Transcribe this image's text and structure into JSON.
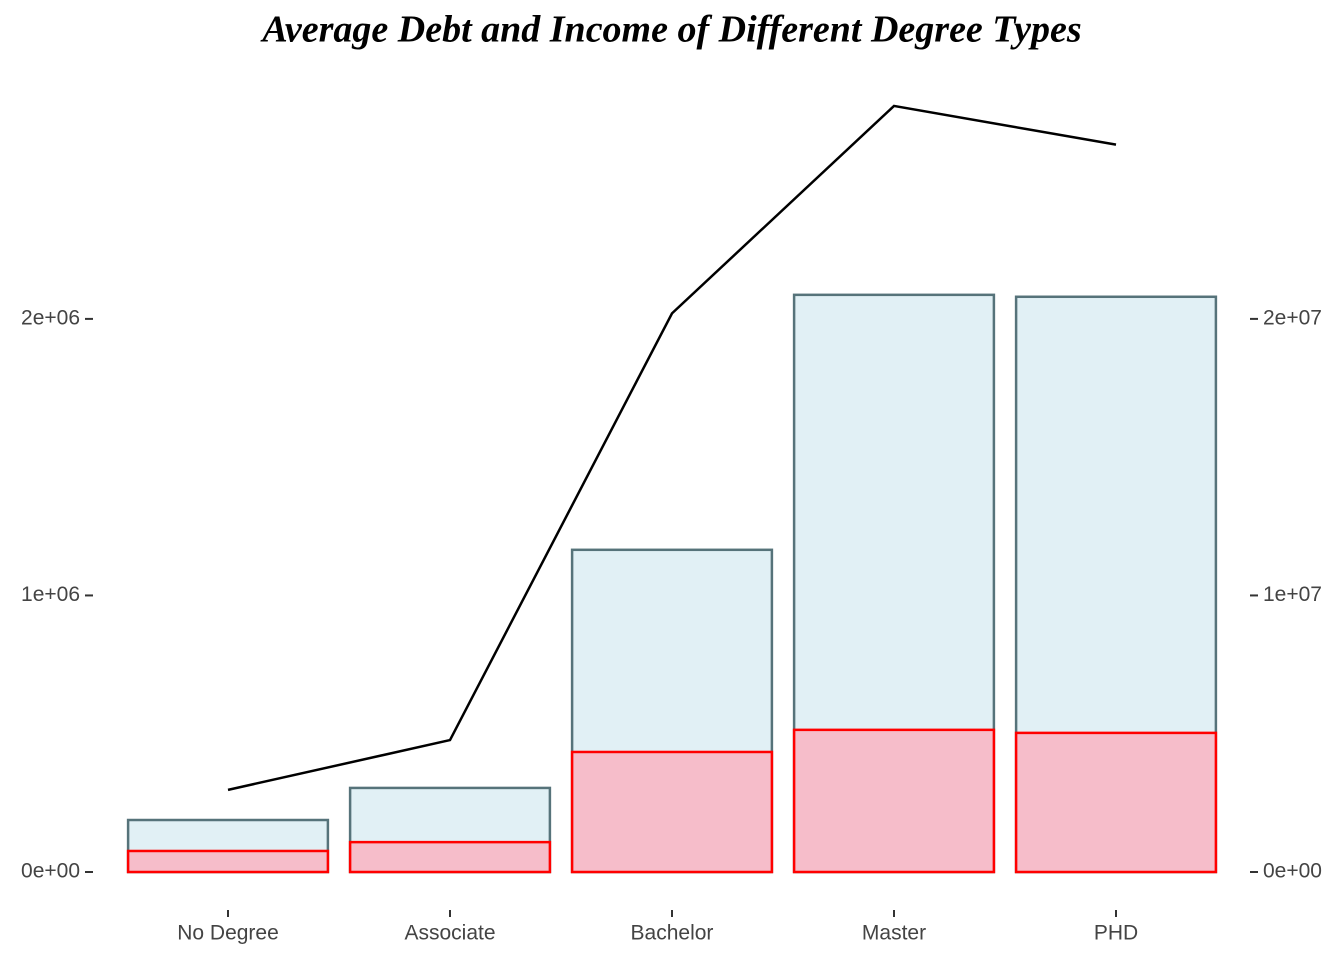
{
  "chart_data": {
    "type": "bar",
    "title": "Average Debt and Income of Different Degree Types",
    "categories": [
      "No Degree",
      "Associate",
      "Bachelor",
      "Master",
      "PHD"
    ],
    "series": [
      {
        "type": "bar",
        "color": "#e1f0f5",
        "stroke": "#56737a",
        "values": [
          188000,
          304000,
          1165000,
          2087000,
          2080000
        ]
      },
      {
        "type": "bar",
        "color": "#f6bdca",
        "stroke": "#ff0000",
        "values": [
          76000,
          108000,
          434000,
          514000,
          503000
        ]
      },
      {
        "type": "line",
        "axis": "y2",
        "color": "#000000",
        "values": [
          2970000,
          4770000,
          20200000,
          27700000,
          26300000
        ]
      }
    ],
    "ylim": [
      -100000,
      2900000
    ],
    "yticks": [
      {
        "value": 0,
        "label": "0e+00"
      },
      {
        "value": 1000000,
        "label": "1e+06"
      },
      {
        "value": 2000000,
        "label": "2e+06"
      }
    ],
    "y2lim": [
      -1000000,
      29000000
    ],
    "y2ticks": [
      {
        "value": 0,
        "label": "0e+00"
      },
      {
        "value": 10000000,
        "label": "1e+07"
      },
      {
        "value": 20000000,
        "label": "2e+07"
      }
    ],
    "grid": false
  }
}
